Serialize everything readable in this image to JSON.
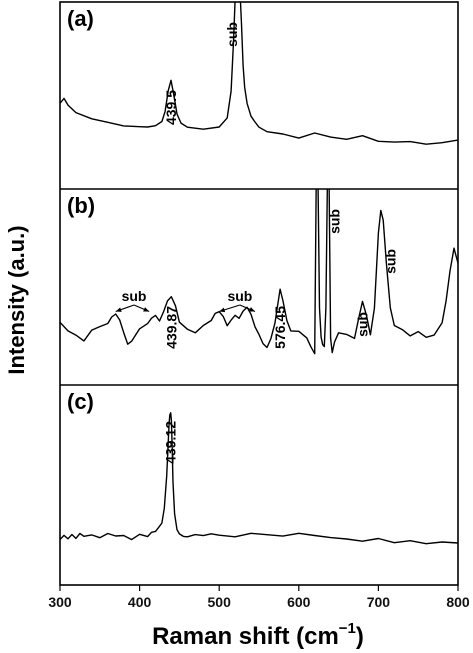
{
  "chart_data": {
    "type": "line",
    "xlabel": "Raman shift",
    "xlabel_unit": "(cm",
    "xlabel_exp": "−1",
    "xlabel_close": ")",
    "ylabel": "Intensity (a.u.)",
    "xlim": [
      300,
      800
    ],
    "xticks": [
      "300",
      "400",
      "500",
      "600",
      "700",
      "800"
    ],
    "panels": [
      {
        "label": "(a)",
        "series": {
          "x": [
            300,
            305,
            310,
            320,
            340,
            360,
            380,
            400,
            410,
            420,
            428,
            432,
            436,
            439.5,
            443,
            447,
            452,
            460,
            480,
            500,
            510,
            515,
            518,
            520,
            522,
            524,
            526,
            528,
            530,
            532,
            535,
            540,
            545,
            550,
            560,
            580,
            600,
            620,
            640,
            660,
            680,
            700,
            720,
            740,
            760,
            780,
            800
          ],
          "y": [
            0.32,
            0.36,
            0.31,
            0.27,
            0.23,
            0.21,
            0.19,
            0.18,
            0.18,
            0.19,
            0.22,
            0.28,
            0.4,
            0.47,
            0.38,
            0.26,
            0.21,
            0.18,
            0.17,
            0.18,
            0.24,
            0.4,
            0.7,
            0.95,
            1.1,
            1.1,
            1.02,
            0.8,
            0.55,
            0.42,
            0.33,
            0.25,
            0.21,
            0.18,
            0.15,
            0.14,
            0.12,
            0.15,
            0.12,
            0.11,
            0.13,
            0.1,
            0.09,
            0.09,
            0.08,
            0.09,
            0.1
          ]
        },
        "annotations": [
          {
            "text": "439.5",
            "x": 439.5
          },
          {
            "text": "sub",
            "x": 535
          }
        ]
      },
      {
        "label": "(b)",
        "series": {
          "x": [
            300,
            310,
            320,
            330,
            340,
            350,
            360,
            365,
            370,
            375,
            380,
            385,
            390,
            400,
            410,
            415,
            420,
            425,
            430,
            435,
            439.87,
            445,
            450,
            460,
            470,
            480,
            490,
            495,
            500,
            505,
            510,
            515,
            520,
            525,
            530,
            535,
            540,
            545,
            550,
            555,
            560,
            565,
            570,
            576.45,
            580,
            585,
            590,
            600,
            610,
            615,
            620,
            622,
            624,
            626,
            628,
            630,
            632,
            634,
            636,
            638,
            640,
            642,
            645,
            650,
            660,
            670,
            675,
            680,
            685,
            690,
            695,
            700,
            703,
            706,
            710,
            715,
            720,
            730,
            740,
            750,
            760,
            770,
            780,
            785,
            790,
            795,
            800
          ],
          "y": [
            0.2,
            0.15,
            0.12,
            0.08,
            0.15,
            0.18,
            0.2,
            0.24,
            0.26,
            0.22,
            0.13,
            0.06,
            0.08,
            0.16,
            0.2,
            0.23,
            0.25,
            0.21,
            0.28,
            0.35,
            0.38,
            0.32,
            0.2,
            0.16,
            0.14,
            0.18,
            0.22,
            0.26,
            0.28,
            0.24,
            0.18,
            0.22,
            0.25,
            0.23,
            0.28,
            0.3,
            0.26,
            0.18,
            0.12,
            0.06,
            0.04,
            0.1,
            0.2,
            0.42,
            0.35,
            0.22,
            0.15,
            0.14,
            0.1,
            0.05,
            0.0,
            1.2,
            1.2,
            0.3,
            0.1,
            0.06,
            0.04,
            0.3,
            1.2,
            1.2,
            0.1,
            0.0,
            0.08,
            0.14,
            0.12,
            0.1,
            0.22,
            0.35,
            0.25,
            0.12,
            0.3,
            0.8,
            0.95,
            0.88,
            0.6,
            0.3,
            0.18,
            0.16,
            0.12,
            0.14,
            0.1,
            0.12,
            0.2,
            0.35,
            0.55,
            0.7,
            0.6
          ]
        },
        "annotations": [
          {
            "text": "sub",
            "x": 380
          },
          {
            "text": "439.87",
            "x": 439.87
          },
          {
            "text": "sub",
            "x": 515
          },
          {
            "text": "576.45",
            "x": 576.45
          },
          {
            "text": "sub",
            "x": 645
          },
          {
            "text": "sub",
            "x": 680
          },
          {
            "text": "sub",
            "x": 715
          }
        ]
      },
      {
        "label": "(c)",
        "series": {
          "x": [
            300,
            305,
            310,
            315,
            320,
            325,
            330,
            340,
            350,
            360,
            370,
            380,
            390,
            400,
            410,
            415,
            420,
            425,
            428,
            431,
            434,
            436,
            437,
            438,
            439.12,
            440,
            441,
            442,
            444,
            447,
            450,
            455,
            460,
            470,
            480,
            490,
            500,
            520,
            540,
            560,
            580,
            600,
            620,
            640,
            660,
            680,
            700,
            720,
            740,
            760,
            780,
            800
          ],
          "y": [
            0.09,
            0.12,
            0.1,
            0.13,
            0.11,
            0.14,
            0.12,
            0.13,
            0.11,
            0.14,
            0.12,
            0.13,
            0.1,
            0.13,
            0.12,
            0.15,
            0.16,
            0.19,
            0.22,
            0.32,
            0.55,
            0.8,
            0.92,
            0.98,
            1.0,
            0.95,
            0.75,
            0.5,
            0.28,
            0.17,
            0.13,
            0.12,
            0.11,
            0.13,
            0.12,
            0.14,
            0.13,
            0.12,
            0.14,
            0.13,
            0.12,
            0.14,
            0.12,
            0.11,
            0.1,
            0.09,
            0.1,
            0.08,
            0.09,
            0.07,
            0.08,
            0.07
          ]
        },
        "annotations": [
          {
            "text": "439.12",
            "x": 439.12
          }
        ]
      }
    ]
  }
}
